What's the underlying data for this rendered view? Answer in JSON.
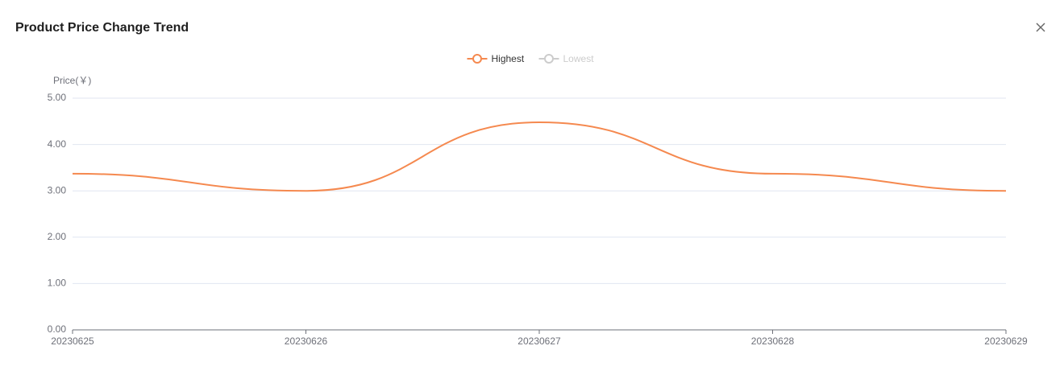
{
  "chart_data": {
    "type": "line",
    "title": "Product Price Change Trend",
    "y_label": "Price(￥)",
    "categories": [
      "20230625",
      "20230626",
      "20230627",
      "20230628",
      "20230629"
    ],
    "series": [
      {
        "name": "Highest",
        "color": "#f5894f",
        "visible": true,
        "values": [
          3.37,
          3.0,
          4.48,
          3.37,
          3.0
        ]
      },
      {
        "name": "Lowest",
        "color": "#cccccc",
        "visible": false,
        "values": [
          null,
          null,
          null,
          null,
          null
        ]
      }
    ],
    "ylim": [
      0,
      5
    ],
    "yticks": [
      {
        "value": 0,
        "label": "0.00"
      },
      {
        "value": 1,
        "label": "1.00"
      },
      {
        "value": 2,
        "label": "2.00"
      },
      {
        "value": 3,
        "label": "3.00"
      },
      {
        "value": 4,
        "label": "4.00"
      },
      {
        "value": 5,
        "label": "5.00"
      }
    ],
    "grid": true,
    "smooth": true,
    "legend": "top"
  }
}
